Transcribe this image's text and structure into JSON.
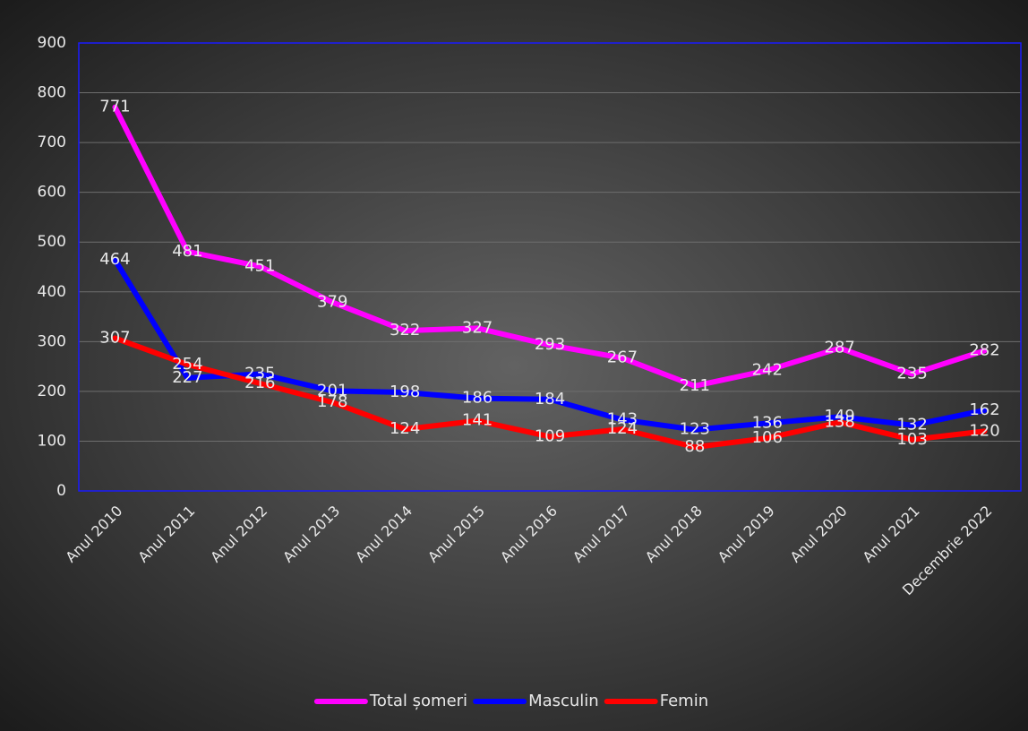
{
  "chart_data": {
    "type": "line",
    "categories": [
      "Anul 2010",
      "Anul 2011",
      "Anul 2012",
      "Anul 2013",
      "Anul 2014",
      "Anul 2015",
      "Anul 2016",
      "Anul 2017",
      "Anul 2018",
      "Anul 2019",
      "Anul 2020",
      "Anul 2021",
      "Decembrie 2022"
    ],
    "series": [
      {
        "name": "Total șomeri",
        "color": "#ff00ff",
        "values": [
          771,
          481,
          451,
          379,
          322,
          327,
          293,
          267,
          211,
          242,
          287,
          235,
          282
        ]
      },
      {
        "name": "Masculin",
        "color": "#0000ff",
        "values": [
          464,
          227,
          235,
          201,
          198,
          186,
          184,
          143,
          123,
          136,
          149,
          132,
          162
        ]
      },
      {
        "name": "Femin",
        "color": "#ff0000",
        "values": [
          307,
          254,
          216,
          178,
          124,
          141,
          109,
          124,
          88,
          106,
          138,
          103,
          120
        ]
      }
    ],
    "ylim": [
      0,
      900
    ],
    "yticks": [
      0,
      100,
      200,
      300,
      400,
      500,
      600,
      700,
      800,
      900
    ],
    "grid": true,
    "legend": "bottom",
    "data_labels": true
  }
}
